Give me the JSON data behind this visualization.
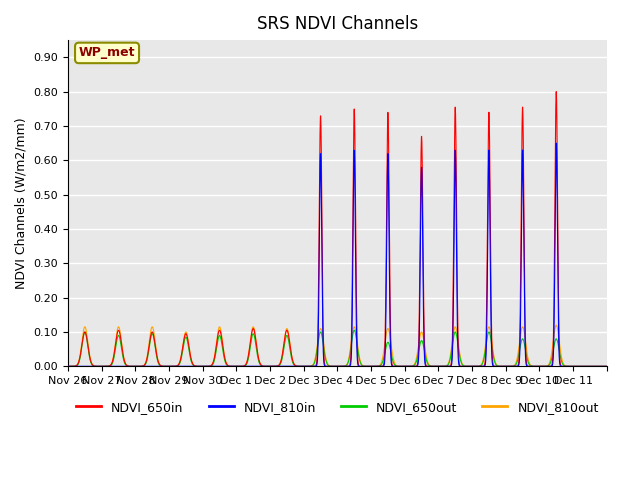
{
  "title": "SRS NDVI Channels",
  "ylabel": "NDVI Channels (W/m2/mm)",
  "xlabel": "",
  "ylim": [
    0.0,
    0.95
  ],
  "annotation_label": "WP_met",
  "colors": {
    "NDVI_650in": "#FF0000",
    "NDVI_810in": "#0000FF",
    "NDVI_650out": "#00CC00",
    "NDVI_810out": "#FFA500"
  },
  "background_color": "#E8E8E8",
  "grid_color": "#FFFFFF",
  "legend_labels": [
    "NDVI_650in",
    "NDVI_810in",
    "NDVI_650out",
    "NDVI_810out"
  ],
  "tick_positions": [
    0,
    1,
    2,
    3,
    4,
    5,
    6,
    7,
    8,
    9,
    10,
    11,
    12,
    13,
    14,
    15,
    16
  ],
  "tick_labels": [
    "Nov 26",
    "Nov 27",
    "Nov 28",
    "Nov 29",
    "Nov 30",
    "Dec 1",
    "Dec 2",
    "Dec 3",
    "Dec 4",
    "Dec 5",
    "Dec 6",
    "Dec 7",
    "Dec 8",
    "Dec 9",
    "Dec 10",
    "Dec 11",
    ""
  ],
  "day_peaks_650in": [
    0.1,
    0.105,
    0.1,
    0.095,
    0.105,
    0.11,
    0.105,
    0.73,
    0.75,
    0.74,
    0.67,
    0.755,
    0.74,
    0.755,
    0.8,
    0.0
  ],
  "day_peaks_810in": [
    0.0,
    0.0,
    0.0,
    0.0,
    0.0,
    0.0,
    0.0,
    0.62,
    0.63,
    0.62,
    0.58,
    0.63,
    0.63,
    0.63,
    0.65,
    0.0
  ],
  "day_peaks_650out": [
    0.1,
    0.09,
    0.095,
    0.085,
    0.09,
    0.095,
    0.09,
    0.1,
    0.105,
    0.07,
    0.075,
    0.1,
    0.1,
    0.08,
    0.08,
    0.0
  ],
  "day_peaks_810out": [
    0.115,
    0.115,
    0.115,
    0.1,
    0.115,
    0.115,
    0.11,
    0.11,
    0.115,
    0.11,
    0.1,
    0.115,
    0.115,
    0.115,
    0.12,
    0.0
  ],
  "yticks": [
    0.0,
    0.1,
    0.2,
    0.3,
    0.4,
    0.5,
    0.6,
    0.7,
    0.8,
    0.9
  ],
  "ytick_labels": [
    "0.00",
    "0.10",
    "0.20",
    "0.30",
    "0.40",
    "0.50",
    "0.60",
    "0.70",
    "0.80",
    "0.90"
  ]
}
